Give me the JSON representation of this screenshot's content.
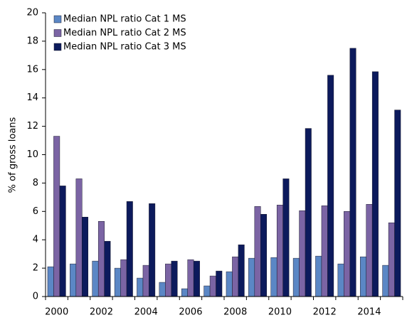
{
  "chart_data": {
    "type": "bar",
    "y_label": "% of gross loans",
    "categories": [
      "2000",
      null,
      "2002",
      null,
      "2004",
      null,
      "2006",
      null,
      "2008",
      null,
      "2010",
      null,
      "2012",
      null,
      "2014",
      null
    ],
    "series": [
      {
        "name": "Median NPL ratio Cat 1 MS",
        "color": "#5b87c5",
        "values": [
          2.1,
          2.3,
          2.5,
          2.0,
          1.3,
          1.0,
          0.55,
          0.75,
          1.75,
          2.7,
          2.75,
          2.7,
          2.85,
          2.3,
          2.8,
          2.2
        ]
      },
      {
        "name": "Median NPL ratio Cat 2 MS",
        "color": "#7b64a4",
        "values": [
          11.3,
          8.3,
          5.3,
          2.6,
          2.2,
          2.3,
          2.6,
          1.45,
          2.8,
          6.35,
          6.45,
          6.05,
          6.4,
          6.0,
          6.5,
          5.2
        ]
      },
      {
        "name": "Median NPL ratio Cat 3 MS",
        "color": "#0c1a5c",
        "values": [
          7.8,
          5.6,
          3.9,
          6.7,
          6.55,
          2.5,
          2.5,
          1.8,
          3.65,
          5.8,
          8.3,
          11.85,
          15.6,
          17.5,
          15.85,
          13.15
        ]
      }
    ],
    "ylim": [
      0,
      20
    ],
    "yticks": [
      0,
      2,
      4,
      6,
      8,
      10,
      12,
      14,
      16,
      18,
      20
    ],
    "grid": false,
    "legend": "top-left"
  }
}
